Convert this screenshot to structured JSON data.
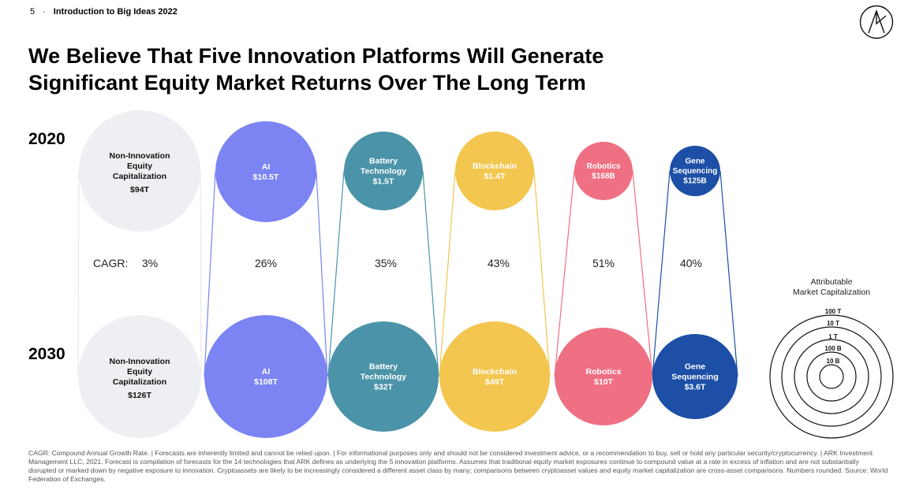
{
  "header": {
    "page_number": "5",
    "separator": "·",
    "section": "Introduction to Big Ideas 2022"
  },
  "title_line1": "We Believe That Five Innovation Platforms Will Generate",
  "title_line2": "Significant Equity Market Returns Over The Long Term",
  "colors": {
    "non_innovation": "#eeeff2",
    "ai": "#7b84f2",
    "battery": "#4b93a8",
    "blockchain": "#f3c64f",
    "robotics": "#ef6f83",
    "gene": "#1d4fa6"
  },
  "chart_data": {
    "type": "bubble",
    "years": [
      "2020",
      "2030"
    ],
    "cagr_label": "CAGR:",
    "platforms": [
      {
        "key": "non_innovation",
        "label_lines": [
          "Non-Innovation",
          "Equity",
          "Capitalization"
        ],
        "value_2020": "$94T",
        "value_2030": "$126T",
        "cagr": "3%"
      },
      {
        "key": "ai",
        "label_lines": [
          "AI"
        ],
        "value_2020": "$10.5T",
        "value_2030": "$108T",
        "cagr": "26%"
      },
      {
        "key": "battery",
        "label_lines": [
          "Battery",
          "Technology"
        ],
        "value_2020": "$1.5T",
        "value_2030": "$32T",
        "cagr": "35%"
      },
      {
        "key": "blockchain",
        "label_lines": [
          "Blockchain"
        ],
        "value_2020": "$1.4T",
        "value_2030": "$49T",
        "cagr": "43%"
      },
      {
        "key": "robotics",
        "label_lines": [
          "Robotics"
        ],
        "value_2020": "$168B",
        "value_2030": "$10T",
        "cagr": "51%"
      },
      {
        "key": "gene",
        "label_lines": [
          "Gene",
          "Sequencing"
        ],
        "value_2020": "$125B",
        "value_2030": "$3.6T",
        "cagr": "40%"
      }
    ],
    "legend": {
      "title_lines": [
        "Attributable",
        "Market Capitalization"
      ],
      "rings": [
        "100 T",
        "10 T",
        "1 T",
        "100 B",
        "10 B"
      ]
    }
  },
  "footer": "CAGR: Compound Annual Growth Rate. | Forecasts are inherently limited and cannot be relied upon. | For informational purposes only and should not be considered investment advice, or a recommendation to buy, sell or hold any particular security/cryptocurrency. | ARK Investment Management LLC, 2021. Forecast is compilation of forecasts for the 14 technologies that ARK defines as underlying the 5 innovation platforms. Assumes that traditional equity market exposures continue to compound value at a rate in excess of inflation and are not substantially disrupted or marked down by negative exposure to innovation. Cryptoassets are likely to be increasingly considered a different asset class by many; comparisons between cryptoasset values and equity market capitalization are cross-asset comparisons. Numbers rounded. Source: World Federation of Exchanges."
}
